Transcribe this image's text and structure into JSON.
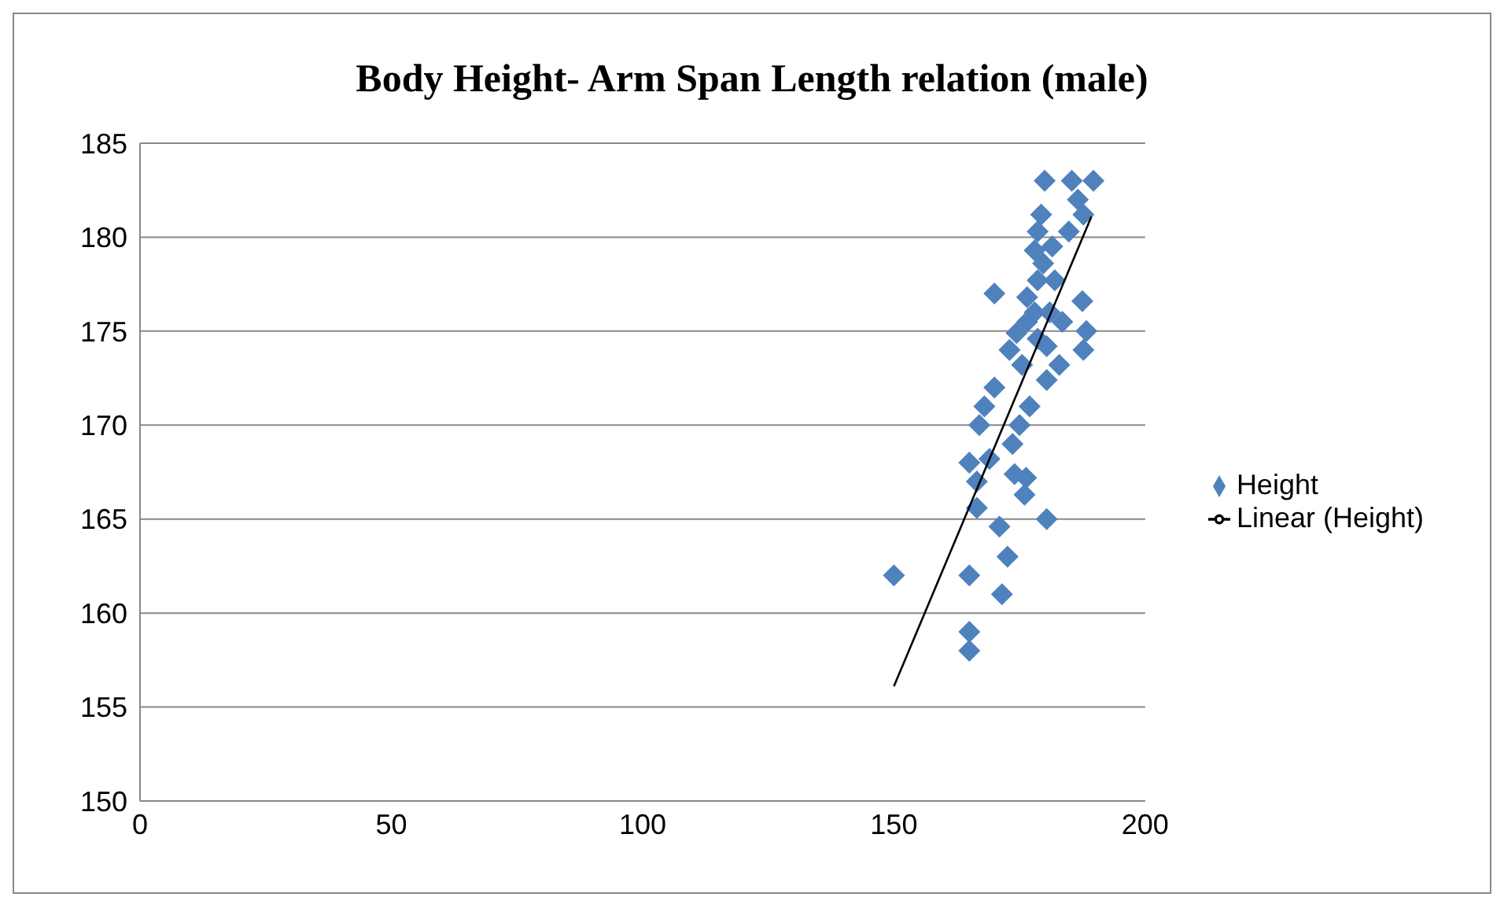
{
  "chart_data": {
    "type": "scatter",
    "title": "Body Height- Arm Span Length relation (male)",
    "xlim": [
      0,
      200
    ],
    "xticks": [
      0,
      50,
      100,
      150,
      200
    ],
    "ylim": [
      150,
      185
    ],
    "yticks": [
      150,
      155,
      160,
      165,
      170,
      175,
      180,
      185
    ],
    "grid": "y",
    "legend": "right",
    "marker": "diamond",
    "series": [
      {
        "name": "Height",
        "color": "#4f81bd",
        "x": [
          150,
          165,
          170,
          165,
          165,
          165,
          171.5,
          172.6,
          171,
          180.4,
          167,
          168,
          170,
          169,
          166.5,
          166.5,
          174,
          176,
          176.3,
          173.6,
          175,
          177,
          175.5,
          173,
          174.4,
          176.5,
          178,
          176.5,
          178.6,
          179.7,
          178,
          178.6,
          179.3,
          180,
          185.4,
          189.7,
          186.6,
          187.7,
          184.8,
          181.5,
          182,
          181,
          183.5,
          187.5,
          188.3,
          187.7,
          182.9,
          180.4,
          180.4,
          178.6
        ],
        "values": [
          162,
          168,
          177,
          158,
          159,
          162,
          161,
          163,
          164.6,
          165,
          170,
          171,
          172,
          168.2,
          167,
          165.6,
          167.4,
          166.3,
          167.2,
          169,
          170,
          171,
          173.2,
          174,
          174.9,
          175.5,
          176,
          176.8,
          177.7,
          178.6,
          179.3,
          180.3,
          181.2,
          183,
          183,
          183,
          182,
          181.2,
          180.3,
          179.5,
          177.7,
          176,
          175.5,
          176.6,
          175,
          174,
          173.2,
          172.4,
          174.2,
          174.6
        ]
      },
      {
        "name": "Linear (Height)",
        "type": "line",
        "color": "#000000",
        "marker": "none",
        "x": [
          150,
          189.3
        ],
        "values": [
          156.1,
          181.1
        ]
      }
    ]
  }
}
